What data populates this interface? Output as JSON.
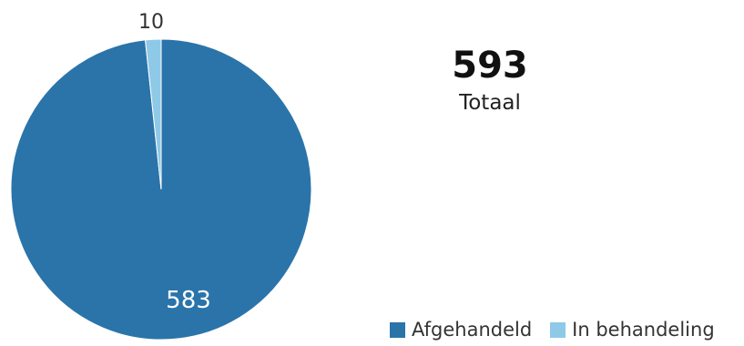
{
  "chart_data": {
    "type": "pie",
    "title": "",
    "total": {
      "value": "593",
      "label": "Totaal"
    },
    "slices": [
      {
        "name": "Afgehandeld",
        "value": 583,
        "label": "583",
        "color": "#2a74aa",
        "label_color": "#ffffff"
      },
      {
        "name": "In behandeling",
        "value": 10,
        "label": "10",
        "color": "#8ec9e8",
        "label_color": "#333333"
      }
    ],
    "legend_position": "bottom-right"
  }
}
